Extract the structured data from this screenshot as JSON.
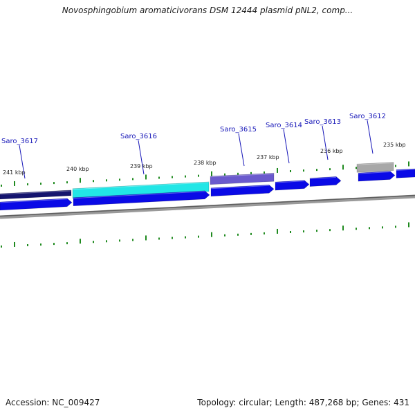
{
  "header": {
    "title": "Novosphingobium aromaticivorans DSM 12444 plasmid pNL2, comp..."
  },
  "footer": {
    "accession": "Accession: NC_009427",
    "summary": "Topology: circular; Length: 487,268 bp; Genes: 431"
  },
  "colors": {
    "backbone": "#7f7f7f",
    "tick": "#1f8a1f",
    "gene_label": "#1616b8",
    "forward_cds": "#0a0ae6",
    "track_dark": "#14146e",
    "track_cyan": "#22e6e6",
    "track_purple": "#6a5acd",
    "track_gray": "#a8a8a8"
  },
  "map": {
    "scale_labels": [
      {
        "text": "241 kbp",
        "kbp": 241
      },
      {
        "text": "240 kbp",
        "kbp": 240
      },
      {
        "text": "239 kbp",
        "kbp": 239
      },
      {
        "text": "238 kbp",
        "kbp": 238
      },
      {
        "text": "237 kbp",
        "kbp": 237
      },
      {
        "text": "236 kbp",
        "kbp": 236
      },
      {
        "text": "235 kbp",
        "kbp": 235
      }
    ],
    "gene_labels": [
      {
        "text": "Saro_3617"
      },
      {
        "text": "Saro_3616"
      },
      {
        "text": "Saro_3615"
      },
      {
        "text": "Saro_3614"
      },
      {
        "text": "Saro_3613"
      },
      {
        "text": "Saro_3612"
      }
    ]
  }
}
